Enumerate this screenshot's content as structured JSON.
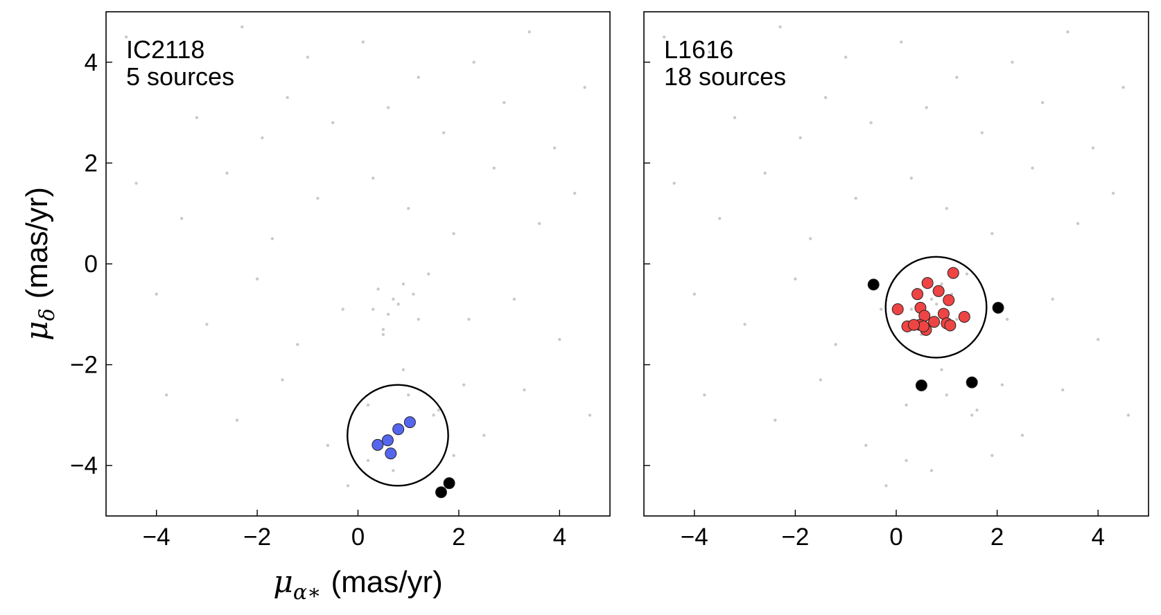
{
  "chart_data": [
    {
      "type": "scatter",
      "label": "IC2118",
      "count_label": "5 sources",
      "xlabel": {
        "symbol": "μ",
        "subscript": "α∗",
        "unit": "(mas/yr)"
      },
      "ylabel": {
        "symbol": "μ",
        "subscript": "δ",
        "unit": "(mas/yr)"
      },
      "xlim": [
        -5,
        5
      ],
      "ylim": [
        -5,
        5
      ],
      "xticks": [
        {
          "value": -4,
          "label": "−4"
        },
        {
          "value": -2,
          "label": "−2"
        },
        0,
        2,
        4
      ],
      "yticks": [
        {
          "value": -4,
          "label": "−4"
        },
        {
          "value": -2,
          "label": "−2"
        },
        0,
        2,
        4
      ],
      "show_yticklabels": true,
      "circle": {
        "center": [
          0.79,
          -3.4
        ],
        "radius": 1.0
      },
      "series": [
        {
          "name": "field",
          "color": "#bbbbbb",
          "x": [
            -4.6,
            -4.1,
            -3.7,
            -3.2,
            -2.8,
            -2.3,
            -1.9,
            -1.4,
            -1.0,
            -0.5,
            0.1,
            0.6,
            1.2,
            1.7,
            2.3,
            2.9,
            3.4,
            3.9,
            4.5,
            -4.4,
            -3.5,
            -2.6,
            -1.7,
            -0.8,
            0.3,
            1.0,
            1.9,
            2.7,
            3.6,
            4.3,
            -4.0,
            -3.0,
            -2.0,
            -1.2,
            -0.3,
            0.5,
            1.4,
            2.2,
            3.1,
            4.0,
            -3.8,
            -2.4,
            -1.5,
            -0.6,
            0.2,
            0.9,
            1.6,
            2.5,
            3.3,
            4.6,
            0.4,
            0.7,
            0.9,
            0.3,
            0.6,
            1.1,
            0.5,
            0.8,
            1.2,
            1.5,
            1.0,
            0.7,
            1.9,
            2.1,
            -0.2,
            0.2
          ],
          "y": [
            4.5,
            3.8,
            4.2,
            2.9,
            3.6,
            4.7,
            2.5,
            3.3,
            4.1,
            2.8,
            4.4,
            3.1,
            3.7,
            2.6,
            4.0,
            3.2,
            4.6,
            2.3,
            3.5,
            1.6,
            0.9,
            1.8,
            0.5,
            1.3,
            1.7,
            1.1,
            0.6,
            1.9,
            0.8,
            1.4,
            -0.6,
            -1.2,
            -0.3,
            -1.6,
            -0.9,
            -1.4,
            -0.2,
            -1.1,
            -0.7,
            -1.5,
            -2.6,
            -3.1,
            -2.3,
            -3.6,
            -2.8,
            -2.1,
            -2.9,
            -3.4,
            -2.5,
            -3.0,
            -0.5,
            -0.7,
            -0.4,
            -0.9,
            -1.0,
            -0.6,
            -1.3,
            -0.8,
            -1.1,
            -3.0,
            -2.6,
            -4.1,
            -3.8,
            -2.4,
            -4.4,
            -3.9
          ]
        },
        {
          "name": "members",
          "color": "#5566ee",
          "x": [
            0.39,
            0.59,
            0.65,
            0.8,
            1.03
          ],
          "y": [
            -3.59,
            -3.5,
            -3.76,
            -3.28,
            -3.14
          ]
        },
        {
          "name": "others",
          "color": "#000000",
          "x": [
            1.65,
            1.81
          ],
          "y": [
            -4.53,
            -4.35
          ]
        }
      ]
    },
    {
      "type": "scatter",
      "label": "L1616",
      "count_label": "18 sources",
      "xlim": [
        -5,
        5
      ],
      "ylim": [
        -5,
        5
      ],
      "xticks": [
        {
          "value": -4,
          "label": "−4"
        },
        {
          "value": -2,
          "label": "−2"
        },
        0,
        2,
        4
      ],
      "yticks": [
        -4,
        -2,
        0,
        2,
        4
      ],
      "show_yticklabels": false,
      "circle": {
        "center": [
          0.79,
          -0.86
        ],
        "radius": 1.0
      },
      "series": [
        {
          "name": "field",
          "color": "#bbbbbb",
          "x": [
            -4.6,
            -4.1,
            -3.7,
            -3.2,
            -2.8,
            -2.3,
            -1.9,
            -1.4,
            -1.0,
            -0.5,
            0.1,
            0.6,
            1.2,
            1.7,
            2.3,
            2.9,
            3.4,
            3.9,
            4.5,
            -4.4,
            -3.5,
            -2.6,
            -1.7,
            -0.8,
            0.3,
            1.0,
            1.9,
            2.7,
            3.6,
            4.3,
            -4.0,
            -3.0,
            -2.0,
            -1.2,
            -0.3,
            0.5,
            1.4,
            2.2,
            3.1,
            4.0,
            -3.8,
            -2.4,
            -1.5,
            -0.6,
            0.2,
            0.9,
            1.6,
            2.5,
            3.3,
            4.6,
            0.4,
            0.7,
            0.9,
            0.3,
            0.6,
            1.1,
            0.5,
            0.8,
            1.2,
            1.5,
            1.0,
            0.7,
            1.9,
            2.1,
            -0.2,
            0.2
          ],
          "y": [
            4.5,
            3.8,
            4.2,
            2.9,
            3.6,
            4.7,
            2.5,
            3.3,
            4.1,
            2.8,
            4.4,
            3.1,
            3.7,
            2.6,
            4.0,
            3.2,
            4.6,
            2.3,
            3.5,
            1.6,
            0.9,
            1.8,
            0.5,
            1.3,
            1.7,
            1.1,
            0.6,
            1.9,
            0.8,
            1.4,
            -0.6,
            -1.2,
            -0.3,
            -1.6,
            -0.9,
            -1.4,
            -0.2,
            -1.1,
            -0.7,
            -1.5,
            -2.6,
            -3.1,
            -2.3,
            -3.6,
            -2.8,
            -2.1,
            -2.9,
            -3.4,
            -2.5,
            -3.0,
            -0.5,
            -0.7,
            -0.4,
            -0.9,
            -1.0,
            -0.6,
            -1.3,
            -0.8,
            -1.1,
            -3.0,
            -2.6,
            -4.1,
            -3.8,
            -2.4,
            -4.4,
            -3.9
          ]
        },
        {
          "name": "members",
          "color": "#ee4444",
          "x": [
            1.13,
            0.62,
            0.42,
            0.84,
            1.04,
            0.03,
            0.48,
            0.56,
            0.94,
            1.35,
            0.22,
            0.47,
            0.75,
            1.0,
            0.59,
            1.07,
            0.54,
            0.35
          ],
          "y": [
            -0.18,
            -0.38,
            -0.6,
            -0.54,
            -0.72,
            -0.9,
            -0.87,
            -1.03,
            -0.99,
            -1.05,
            -1.24,
            -1.21,
            -1.15,
            -1.18,
            -1.31,
            -1.22,
            -1.24,
            -1.21
          ]
        },
        {
          "name": "others",
          "color": "#000000",
          "x": [
            -0.45,
            2.02,
            0.5,
            1.5
          ],
          "y": [
            -0.41,
            -0.87,
            -2.41,
            -2.35
          ]
        }
      ]
    }
  ]
}
